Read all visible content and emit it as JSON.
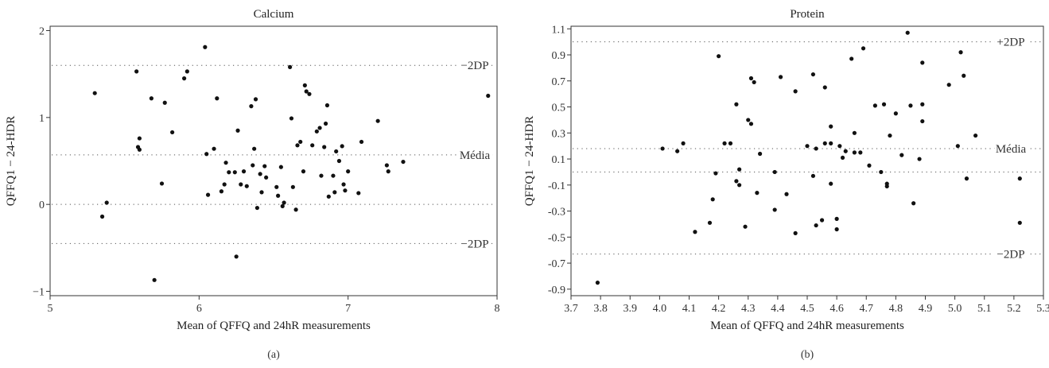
{
  "chart_data": [
    {
      "type": "scatter",
      "panel_label": "(a)",
      "title": "Calcium",
      "xlabel": "Mean of QFFQ and 24hR measurements",
      "ylabel": "QFFQ1 − 24-HDR",
      "xlim": [
        5,
        8
      ],
      "ylim": [
        -1.05,
        2.05
      ],
      "xticks": [
        5,
        6,
        7,
        8
      ],
      "xtick_labels": [
        "5",
        "6",
        "7",
        "8"
      ],
      "yticks": [
        -1,
        0,
        1,
        2
      ],
      "ytick_labels": [
        "−1",
        "0",
        "1",
        "2"
      ],
      "grid": false,
      "reference_lines": [
        {
          "label": "−2DP",
          "y": 1.6
        },
        {
          "label": "Média",
          "y": 0.57
        },
        {
          "label": "",
          "y": 0
        },
        {
          "label": "−2DP",
          "y": -0.45
        }
      ],
      "points": [
        [
          5.3,
          1.28
        ],
        [
          5.35,
          -0.14
        ],
        [
          5.38,
          0.02
        ],
        [
          5.58,
          1.53
        ],
        [
          5.6,
          0.76
        ],
        [
          5.59,
          0.66
        ],
        [
          5.6,
          0.63
        ],
        [
          5.68,
          1.22
        ],
        [
          5.7,
          -0.87
        ],
        [
          5.75,
          0.24
        ],
        [
          5.77,
          1.17
        ],
        [
          5.82,
          0.83
        ],
        [
          5.9,
          1.45
        ],
        [
          5.92,
          1.53
        ],
        [
          6.04,
          1.81
        ],
        [
          6.05,
          0.58
        ],
        [
          6.06,
          0.11
        ],
        [
          6.1,
          0.64
        ],
        [
          6.12,
          1.22
        ],
        [
          6.15,
          0.15
        ],
        [
          6.17,
          0.23
        ],
        [
          6.18,
          0.48
        ],
        [
          6.2,
          0.37
        ],
        [
          6.24,
          0.37
        ],
        [
          6.25,
          -0.6
        ],
        [
          6.26,
          0.85
        ],
        [
          6.28,
          0.23
        ],
        [
          6.3,
          0.38
        ],
        [
          6.32,
          0.21
        ],
        [
          6.35,
          1.13
        ],
        [
          6.36,
          0.45
        ],
        [
          6.37,
          0.64
        ],
        [
          6.38,
          1.21
        ],
        [
          6.39,
          -0.04
        ],
        [
          6.41,
          0.35
        ],
        [
          6.42,
          0.14
        ],
        [
          6.44,
          0.44
        ],
        [
          6.45,
          0.31
        ],
        [
          6.52,
          0.2
        ],
        [
          6.53,
          0.1
        ],
        [
          6.55,
          0.43
        ],
        [
          6.56,
          -0.02
        ],
        [
          6.57,
          0.02
        ],
        [
          6.61,
          1.58
        ],
        [
          6.62,
          0.99
        ],
        [
          6.63,
          0.2
        ],
        [
          6.65,
          -0.06
        ],
        [
          6.66,
          0.68
        ],
        [
          6.68,
          0.72
        ],
        [
          6.7,
          0.38
        ],
        [
          6.71,
          1.37
        ],
        [
          6.72,
          1.3
        ],
        [
          6.74,
          1.27
        ],
        [
          6.76,
          0.68
        ],
        [
          6.79,
          0.84
        ],
        [
          6.81,
          0.88
        ],
        [
          6.82,
          0.33
        ],
        [
          6.84,
          0.66
        ],
        [
          6.85,
          0.93
        ],
        [
          6.86,
          1.14
        ],
        [
          6.87,
          0.09
        ],
        [
          6.9,
          0.33
        ],
        [
          6.91,
          0.14
        ],
        [
          6.92,
          0.61
        ],
        [
          6.94,
          0.5
        ],
        [
          6.96,
          0.67
        ],
        [
          6.97,
          0.23
        ],
        [
          6.98,
          0.16
        ],
        [
          7.0,
          0.38
        ],
        [
          7.07,
          0.13
        ],
        [
          7.09,
          0.72
        ],
        [
          7.2,
          0.96
        ],
        [
          7.26,
          0.45
        ],
        [
          7.27,
          0.38
        ],
        [
          7.37,
          0.49
        ],
        [
          7.94,
          1.25
        ]
      ]
    },
    {
      "type": "scatter",
      "panel_label": "(b)",
      "title": "Protein",
      "xlabel": "Mean of QFFQ and 24hR measurements",
      "ylabel": "QFFQ1 − 24-HDR",
      "xlim": [
        3.7,
        5.3
      ],
      "ylim": [
        -0.95,
        1.12
      ],
      "xticks": [
        3.7,
        3.8,
        3.9,
        4.0,
        4.1,
        4.2,
        4.3,
        4.4,
        4.5,
        4.6,
        4.7,
        4.8,
        4.9,
        5.0,
        5.1,
        5.2,
        5.3
      ],
      "xtick_labels": [
        "3.7",
        "3.8",
        "3.9",
        "4.0",
        "4.1",
        "4.2",
        "4.3",
        "4.4",
        "4.5",
        "4.6",
        "4.7",
        "4.8",
        "4.9",
        "5.0",
        "5.1",
        "5.2",
        "5.3"
      ],
      "yticks": [
        -0.9,
        -0.7,
        -0.5,
        -0.3,
        -0.1,
        0.1,
        0.3,
        0.5,
        0.7,
        0.9,
        1.1
      ],
      "ytick_labels": [
        "-0.9",
        "-0.7",
        "-0.5",
        "-0.3",
        "-0.1",
        "0.1",
        "0.3",
        "0.5",
        "0.7",
        "0.9",
        "1.1"
      ],
      "grid": false,
      "reference_lines": [
        {
          "label": "+2DP",
          "y": 1.0
        },
        {
          "label": "Média",
          "y": 0.18
        },
        {
          "label": "",
          "y": 0
        },
        {
          "label": "−2DP",
          "y": -0.63
        }
      ],
      "points": [
        [
          3.79,
          -0.85
        ],
        [
          4.01,
          0.18
        ],
        [
          4.06,
          0.16
        ],
        [
          4.08,
          0.22
        ],
        [
          4.12,
          -0.46
        ],
        [
          4.17,
          -0.39
        ],
        [
          4.18,
          -0.21
        ],
        [
          4.19,
          -0.01
        ],
        [
          4.2,
          0.89
        ],
        [
          4.22,
          0.22
        ],
        [
          4.24,
          0.22
        ],
        [
          4.26,
          0.52
        ],
        [
          4.26,
          -0.07
        ],
        [
          4.27,
          0.02
        ],
        [
          4.27,
          -0.1
        ],
        [
          4.29,
          -0.42
        ],
        [
          4.3,
          0.4
        ],
        [
          4.31,
          0.37
        ],
        [
          4.31,
          0.72
        ],
        [
          4.32,
          0.69
        ],
        [
          4.33,
          -0.16
        ],
        [
          4.34,
          0.14
        ],
        [
          4.39,
          -0.29
        ],
        [
          4.39,
          0.0
        ],
        [
          4.41,
          0.73
        ],
        [
          4.43,
          -0.17
        ],
        [
          4.46,
          0.62
        ],
        [
          4.46,
          -0.47
        ],
        [
          4.5,
          0.2
        ],
        [
          4.52,
          -0.03
        ],
        [
          4.52,
          0.75
        ],
        [
          4.53,
          0.18
        ],
        [
          4.53,
          -0.41
        ],
        [
          4.55,
          -0.37
        ],
        [
          4.56,
          0.65
        ],
        [
          4.56,
          0.22
        ],
        [
          4.58,
          0.22
        ],
        [
          4.58,
          0.35
        ],
        [
          4.58,
          -0.09
        ],
        [
          4.6,
          -0.36
        ],
        [
          4.6,
          -0.44
        ],
        [
          4.61,
          0.2
        ],
        [
          4.62,
          0.11
        ],
        [
          4.63,
          0.16
        ],
        [
          4.65,
          0.87
        ],
        [
          4.66,
          0.3
        ],
        [
          4.66,
          0.15
        ],
        [
          4.68,
          0.15
        ],
        [
          4.69,
          0.95
        ],
        [
          4.71,
          0.05
        ],
        [
          4.73,
          0.51
        ],
        [
          4.75,
          0.0
        ],
        [
          4.76,
          0.52
        ],
        [
          4.77,
          -0.09
        ],
        [
          4.77,
          -0.11
        ],
        [
          4.78,
          0.28
        ],
        [
          4.8,
          0.45
        ],
        [
          4.82,
          0.13
        ],
        [
          4.84,
          1.07
        ],
        [
          4.85,
          0.51
        ],
        [
          4.86,
          -0.24
        ],
        [
          4.88,
          0.1
        ],
        [
          4.89,
          0.84
        ],
        [
          4.89,
          0.39
        ],
        [
          4.89,
          0.52
        ],
        [
          4.98,
          0.67
        ],
        [
          5.01,
          0.2
        ],
        [
          5.02,
          0.92
        ],
        [
          5.03,
          0.74
        ],
        [
          5.04,
          -0.05
        ],
        [
          5.07,
          0.28
        ],
        [
          5.22,
          -0.05
        ],
        [
          5.22,
          -0.39
        ]
      ]
    }
  ]
}
